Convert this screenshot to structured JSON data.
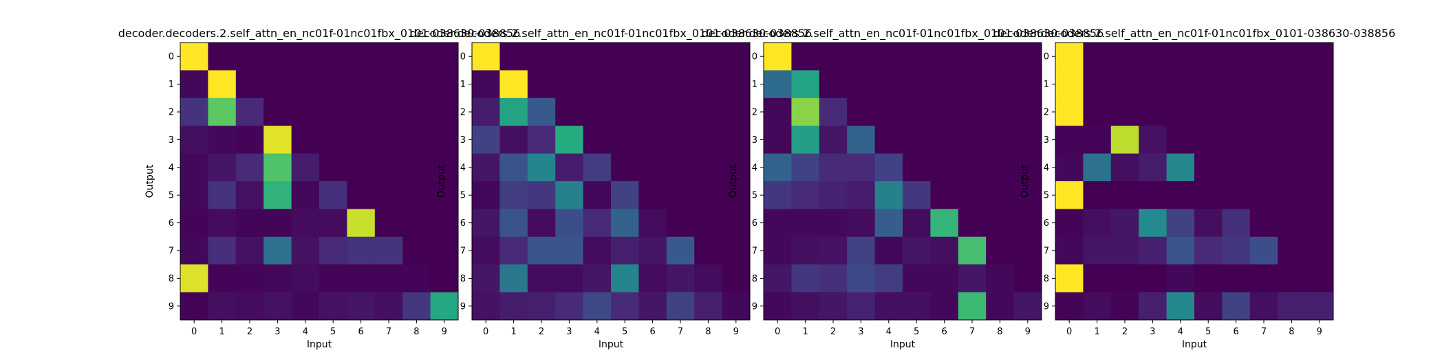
{
  "figure": {
    "background": "#ffffff"
  },
  "colormap": "viridis",
  "chart_data": [
    {
      "type": "heatmap",
      "title": "decoder.decoders.2.self_attn_en_nc01f-01nc01fbx_0101-038630-038856",
      "xlabel": "Input",
      "ylabel": "Output",
      "x_ticks": [
        "0",
        "1",
        "2",
        "3",
        "4",
        "5",
        "6",
        "7",
        "8",
        "9"
      ],
      "y_ticks": [
        "0",
        "1",
        "2",
        "3",
        "4",
        "5",
        "6",
        "7",
        "8",
        "9"
      ],
      "grid": false,
      "values": [
        [
          1.0,
          0,
          0,
          0,
          0,
          0,
          0,
          0,
          0,
          0
        ],
        [
          0.02,
          1.0,
          0,
          0,
          0,
          0,
          0,
          0,
          0,
          0
        ],
        [
          0.15,
          0.75,
          0.12,
          0,
          0,
          0,
          0,
          0,
          0,
          0
        ],
        [
          0.04,
          0.02,
          0.01,
          0.96,
          0,
          0,
          0,
          0,
          0,
          0
        ],
        [
          0.02,
          0.06,
          0.12,
          0.72,
          0.08,
          0,
          0,
          0,
          0,
          0
        ],
        [
          0.02,
          0.15,
          0.05,
          0.65,
          0.02,
          0.14,
          0,
          0,
          0,
          0
        ],
        [
          0.01,
          0.03,
          0.01,
          0.01,
          0.03,
          0.03,
          0.92,
          0,
          0,
          0
        ],
        [
          0.02,
          0.13,
          0.05,
          0.38,
          0.05,
          0.12,
          0.15,
          0.15,
          0,
          0
        ],
        [
          0.95,
          0.01,
          0.01,
          0.02,
          0.03,
          0.01,
          0.01,
          0.01,
          0.01,
          0
        ],
        [
          0.01,
          0.04,
          0.03,
          0.05,
          0.02,
          0.05,
          0.06,
          0.04,
          0.16,
          0.6
        ]
      ]
    },
    {
      "type": "heatmap",
      "title": "decoder.decoders.2.self_attn_en_nc01f-01nc01fbx_0101-038630-038856",
      "xlabel": "Input",
      "ylabel": "Output",
      "x_ticks": [
        "0",
        "1",
        "2",
        "3",
        "4",
        "5",
        "6",
        "7",
        "8",
        "9"
      ],
      "y_ticks": [
        "0",
        "1",
        "2",
        "3",
        "4",
        "5",
        "6",
        "7",
        "8",
        "9"
      ],
      "grid": false,
      "values": [
        [
          1.0,
          0,
          0,
          0,
          0,
          0,
          0,
          0,
          0,
          0
        ],
        [
          0.02,
          1.0,
          0,
          0,
          0,
          0,
          0,
          0,
          0,
          0
        ],
        [
          0.08,
          0.58,
          0.28,
          0,
          0,
          0,
          0,
          0,
          0,
          0
        ],
        [
          0.2,
          0.04,
          0.12,
          0.62,
          0,
          0,
          0,
          0,
          0,
          0
        ],
        [
          0.06,
          0.26,
          0.45,
          0.08,
          0.18,
          0,
          0,
          0,
          0,
          0
        ],
        [
          0.02,
          0.18,
          0.16,
          0.44,
          0.02,
          0.2,
          0,
          0,
          0,
          0
        ],
        [
          0.06,
          0.26,
          0.03,
          0.24,
          0.12,
          0.32,
          0.03,
          0,
          0,
          0
        ],
        [
          0.03,
          0.12,
          0.26,
          0.26,
          0.03,
          0.09,
          0.06,
          0.28,
          0,
          0
        ],
        [
          0.06,
          0.4,
          0.03,
          0.03,
          0.06,
          0.45,
          0.03,
          0.06,
          0.03,
          0
        ],
        [
          0.05,
          0.08,
          0.09,
          0.12,
          0.22,
          0.12,
          0.06,
          0.2,
          0.09,
          0.02
        ]
      ]
    },
    {
      "type": "heatmap",
      "title": "decoder.decoders.2.self_attn_en_nc01f-01nc01fbx_0101-038630-038856",
      "xlabel": "Input",
      "ylabel": "Output",
      "x_ticks": [
        "0",
        "1",
        "2",
        "3",
        "4",
        "5",
        "6",
        "7",
        "8",
        "9"
      ],
      "y_ticks": [
        "0",
        "1",
        "2",
        "3",
        "4",
        "5",
        "6",
        "7",
        "8",
        "9"
      ],
      "grid": false,
      "values": [
        [
          1.0,
          0,
          0,
          0,
          0,
          0,
          0,
          0,
          0,
          0
        ],
        [
          0.35,
          0.58,
          0,
          0,
          0,
          0,
          0,
          0,
          0,
          0
        ],
        [
          0.02,
          0.82,
          0.12,
          0,
          0,
          0,
          0,
          0,
          0,
          0
        ],
        [
          0.02,
          0.56,
          0.06,
          0.32,
          0,
          0,
          0,
          0,
          0,
          0
        ],
        [
          0.32,
          0.2,
          0.12,
          0.12,
          0.2,
          0,
          0,
          0,
          0,
          0
        ],
        [
          0.16,
          0.12,
          0.1,
          0.08,
          0.44,
          0.16,
          0,
          0,
          0,
          0
        ],
        [
          0.02,
          0.02,
          0.02,
          0.03,
          0.3,
          0.03,
          0.66,
          0,
          0,
          0
        ],
        [
          0.02,
          0.04,
          0.05,
          0.2,
          0.02,
          0.06,
          0.04,
          0.7,
          0,
          0
        ],
        [
          0.06,
          0.16,
          0.14,
          0.22,
          0.18,
          0.02,
          0.02,
          0.06,
          0.02,
          0
        ],
        [
          0.02,
          0.04,
          0.06,
          0.1,
          0.04,
          0.04,
          0.02,
          0.68,
          0.02,
          0.06
        ]
      ]
    },
    {
      "type": "heatmap",
      "title": "decoder.decoders.2.self_attn_en_nc01f-01nc01fbx_0101-038630-038856",
      "xlabel": "Input",
      "ylabel": "Output",
      "x_ticks": [
        "0",
        "1",
        "2",
        "3",
        "4",
        "5",
        "6",
        "7",
        "8",
        "9"
      ],
      "y_ticks": [
        "0",
        "1",
        "2",
        "3",
        "4",
        "5",
        "6",
        "7",
        "8",
        "9"
      ],
      "grid": false,
      "values": [
        [
          1.0,
          0,
          0,
          0,
          0,
          0,
          0,
          0,
          0,
          0
        ],
        [
          1.0,
          0,
          0,
          0,
          0,
          0,
          0,
          0,
          0,
          0
        ],
        [
          1.0,
          0,
          0,
          0,
          0,
          0,
          0,
          0,
          0,
          0
        ],
        [
          0.01,
          0.01,
          0.9,
          0.05,
          0,
          0,
          0,
          0,
          0,
          0
        ],
        [
          0.02,
          0.38,
          0.04,
          0.08,
          0.46,
          0,
          0,
          0,
          0,
          0
        ],
        [
          1.0,
          0,
          0,
          0,
          0,
          0,
          0,
          0,
          0,
          0
        ],
        [
          0.01,
          0.04,
          0.06,
          0.48,
          0.2,
          0.04,
          0.14,
          0,
          0,
          0
        ],
        [
          0.02,
          0.06,
          0.06,
          0.09,
          0.26,
          0.12,
          0.16,
          0.24,
          0,
          0
        ],
        [
          1.0,
          0,
          0,
          0,
          0.02,
          0,
          0,
          0,
          0,
          0
        ],
        [
          0.01,
          0.03,
          0.01,
          0.09,
          0.47,
          0.03,
          0.2,
          0.04,
          0.09,
          0.09
        ]
      ]
    }
  ]
}
